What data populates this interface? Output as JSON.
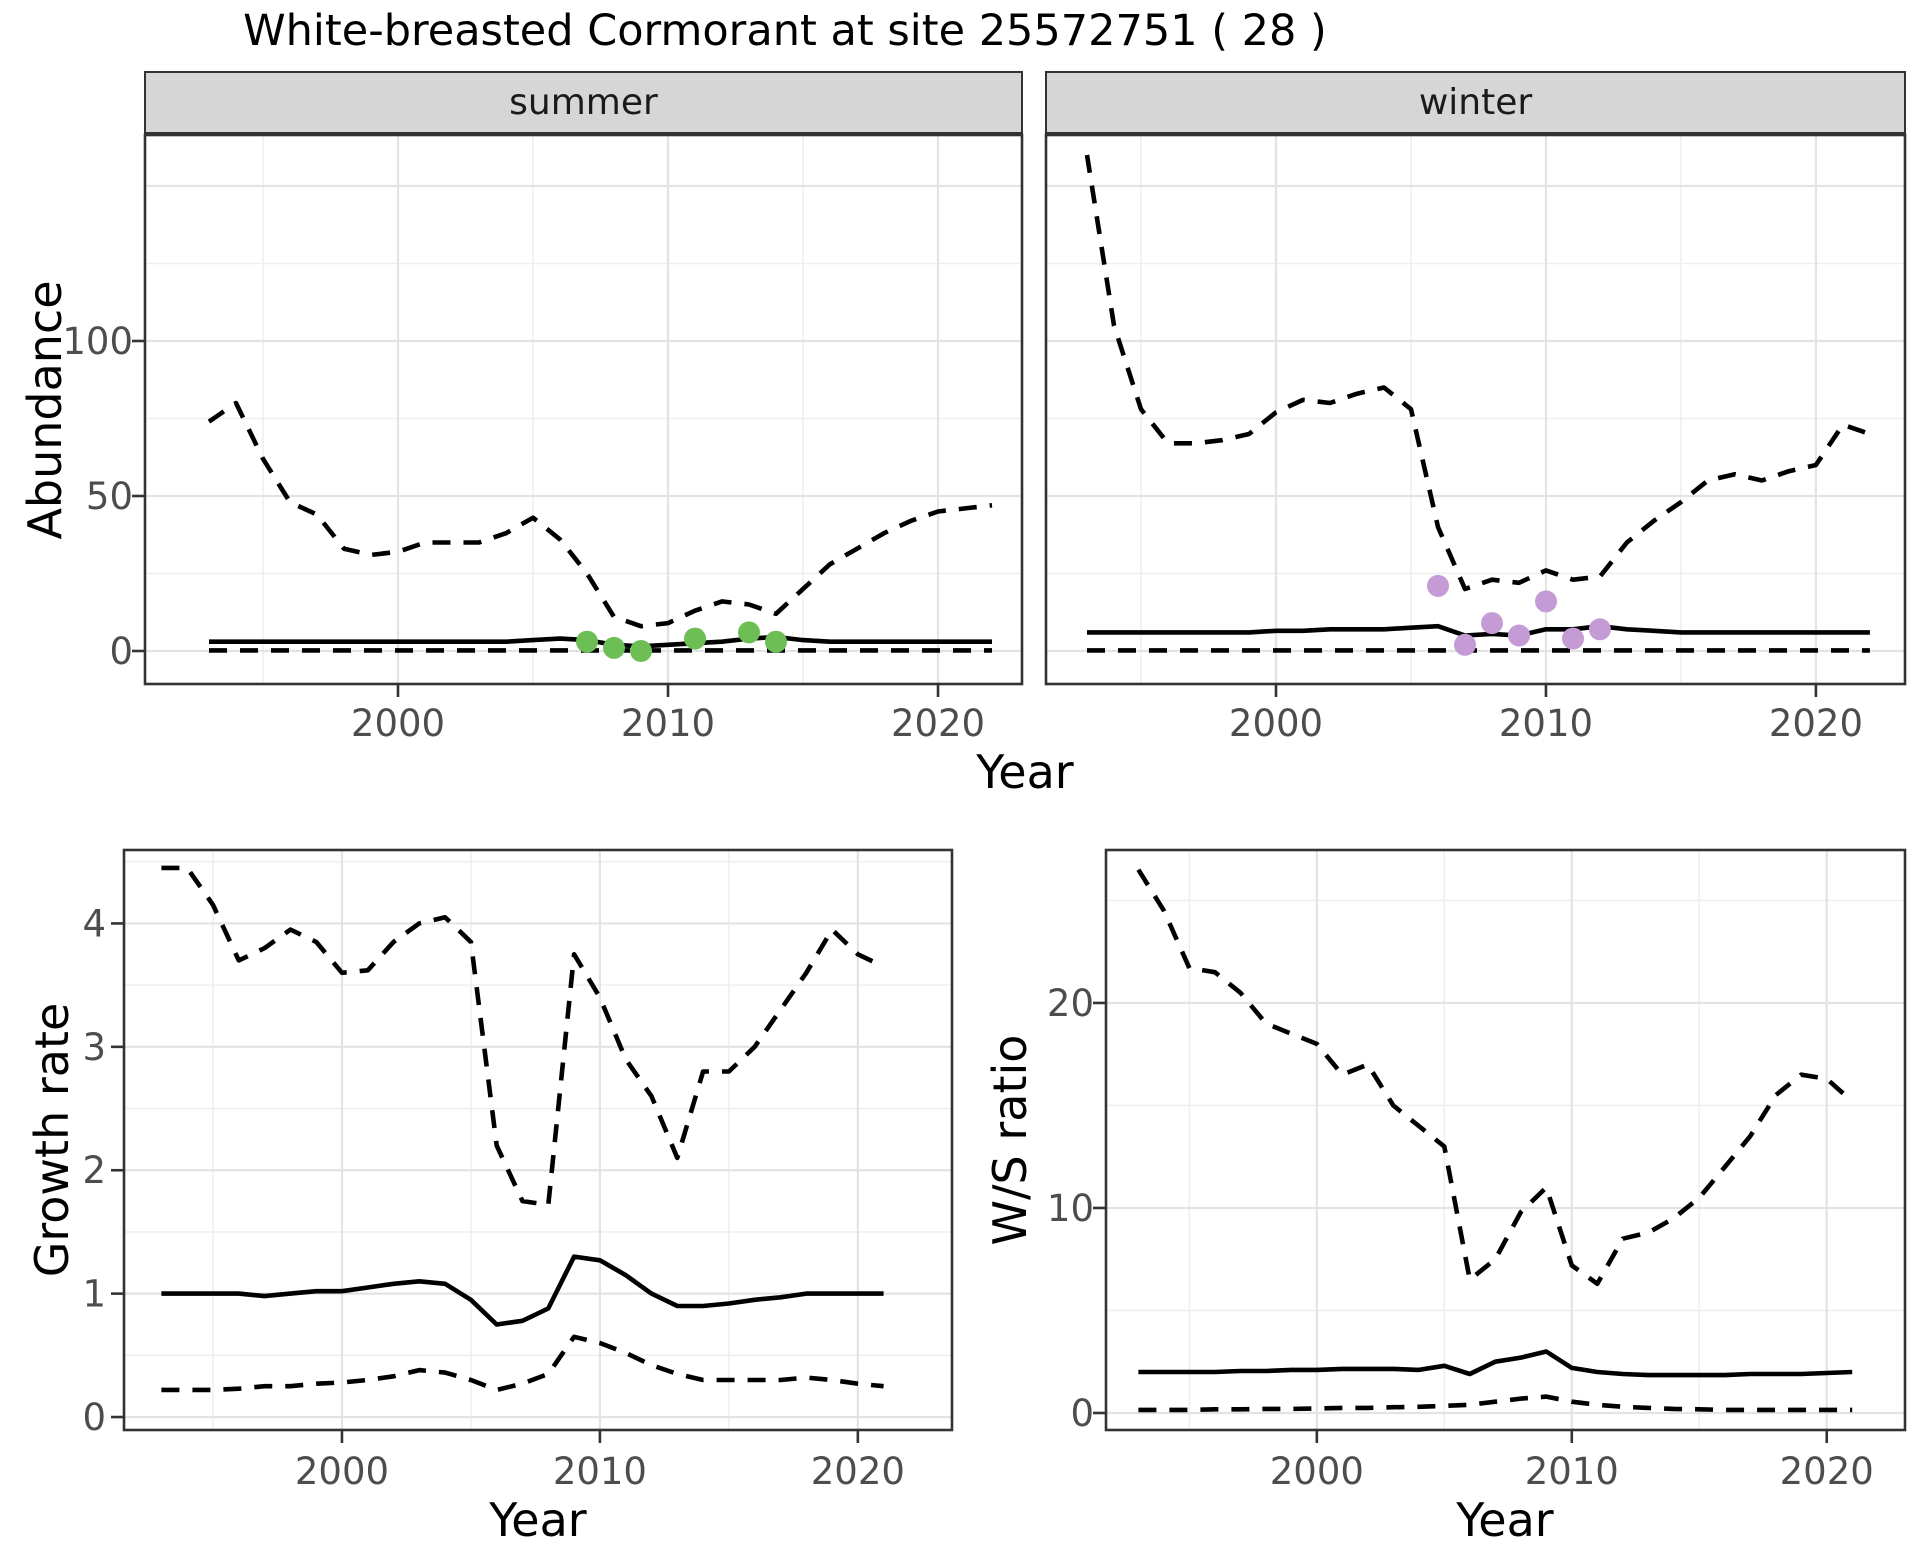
{
  "title": "White-breasted Cormorant at site 25572751 ( 28 )",
  "colors": {
    "observed_summer": "#6dbe54",
    "observed_winter": "#c49bd4",
    "line": "#000000",
    "grid_major": "#e3e3e3",
    "grid_minor": "#efefef",
    "panel_border": "#333333",
    "strip_fill": "#d6d6d6",
    "tick_text": "#4d4d4d",
    "strip_text": "#1a1a1a"
  },
  "labels": {
    "facet_summer": "summer",
    "facet_winter": "winter",
    "abundance_axis": "Abundance",
    "year_axis_top": "Year",
    "growth_axis": "Growth rate",
    "ws_axis": "W/S ratio",
    "year_axis_bottom_left": "Year",
    "year_axis_bottom_right": "Year"
  },
  "chart_data": [
    {
      "id": "summer",
      "type": "line",
      "facet_label": "summer",
      "xlabel": "Year",
      "ylabel": "Abundance",
      "legend": "none",
      "grid": true,
      "x_domain": [
        1990.63,
        2023.11
      ],
      "y_domain": [
        -10.65,
        166.45
      ],
      "x_ticks": [
        2000,
        2010,
        2020
      ],
      "x_minor": [
        1995,
        2005,
        2015
      ],
      "y_ticks": [
        0,
        50,
        100
      ],
      "y_grid": [
        0,
        50,
        100,
        150
      ],
      "y_minor": [
        25,
        75,
        125
      ],
      "x": [
        1993,
        1994,
        1995,
        1996,
        1997,
        1998,
        1999,
        2000,
        2001,
        2002,
        2003,
        2004,
        2005,
        2006,
        2007,
        2008,
        2009,
        2010,
        2011,
        2012,
        2013,
        2014,
        2015,
        2016,
        2017,
        2018,
        2019,
        2020,
        2021,
        2022
      ],
      "series": [
        {
          "name": "upper_ci",
          "label": "97.5% credible bound",
          "style": "dashed",
          "values": [
            74,
            80,
            62,
            48,
            44,
            33,
            31,
            32,
            35,
            35,
            35,
            38,
            43,
            36,
            25,
            11,
            8,
            9,
            13,
            16,
            15,
            12,
            20,
            28,
            33,
            38,
            42,
            45,
            46,
            47
          ]
        },
        {
          "name": "median",
          "label": "modelled abundance",
          "style": "solid",
          "values": [
            3,
            3,
            3,
            3,
            3,
            3,
            3,
            3,
            3,
            3,
            3,
            3,
            3.5,
            4,
            3.5,
            2,
            1.5,
            2,
            2.5,
            3,
            4,
            4.5,
            3.5,
            3,
            3,
            3,
            3,
            3,
            3,
            3
          ]
        },
        {
          "name": "lower_ci",
          "label": "2.5% credible bound",
          "style": "dashed",
          "values": [
            0.2,
            0.2,
            0.2,
            0.2,
            0.2,
            0.2,
            0.2,
            0.2,
            0.2,
            0.2,
            0.2,
            0.2,
            0.2,
            0.2,
            0.2,
            0.2,
            0.2,
            0.2,
            0.2,
            0.2,
            0.2,
            0.2,
            0.2,
            0.2,
            0.2,
            0.2,
            0.2,
            0.2,
            0.2,
            0.2
          ]
        }
      ],
      "points": {
        "label": "observed counts (summer)",
        "color": "#6dbe54",
        "years": [
          2007,
          2008,
          2009,
          2011,
          2013,
          2014
        ],
        "values": [
          3,
          1,
          0,
          4,
          6,
          3
        ]
      }
    },
    {
      "id": "winter",
      "type": "line",
      "facet_label": "winter",
      "xlabel": "Year",
      "ylabel": "",
      "legend": "none",
      "grid": true,
      "x_domain": [
        1991.48,
        2023.3
      ],
      "y_domain": [
        -10.65,
        166.45
      ],
      "x_ticks": [
        2000,
        2010,
        2020
      ],
      "x_minor": [
        1995,
        2005,
        2015
      ],
      "y_ticks": [],
      "y_grid": [
        0,
        50,
        100,
        150
      ],
      "y_minor": [
        25,
        75,
        125
      ],
      "x": [
        1993,
        1994,
        1995,
        1996,
        1997,
        1998,
        1999,
        2000,
        2001,
        2002,
        2003,
        2004,
        2005,
        2006,
        2007,
        2008,
        2009,
        2010,
        2011,
        2012,
        2013,
        2014,
        2015,
        2016,
        2017,
        2018,
        2019,
        2020,
        2021,
        2022
      ],
      "series": [
        {
          "name": "upper_ci",
          "label": "97.5% credible bound",
          "style": "dashed",
          "values": [
            160,
            105,
            78,
            67,
            67,
            68,
            70,
            77,
            81,
            80,
            83,
            85,
            78,
            40,
            20,
            23,
            22,
            26,
            23,
            24,
            35,
            42,
            48,
            55,
            57,
            55,
            58,
            60,
            73,
            70
          ]
        },
        {
          "name": "median",
          "label": "modelled abundance",
          "style": "solid",
          "values": [
            6,
            6,
            6,
            6,
            6,
            6,
            6,
            6.5,
            6.5,
            7,
            7,
            7,
            7.5,
            8,
            5,
            5.5,
            5,
            7,
            7,
            8,
            7,
            6.5,
            6,
            6,
            6,
            6,
            6,
            6,
            6,
            6
          ]
        },
        {
          "name": "lower_ci",
          "label": "2.5% credible bound",
          "style": "dashed",
          "values": [
            0.2,
            0.2,
            0.2,
            0.2,
            0.2,
            0.2,
            0.2,
            0.2,
            0.2,
            0.2,
            0.2,
            0.2,
            0.2,
            0.2,
            0.2,
            0.2,
            0.2,
            0.2,
            0.2,
            0.2,
            0.2,
            0.2,
            0.2,
            0.2,
            0.2,
            0.2,
            0.2,
            0.2,
            0.2,
            0.2
          ]
        }
      ],
      "points": {
        "label": "observed counts (winter)",
        "color": "#c49bd4",
        "years": [
          2006,
          2007,
          2008,
          2009,
          2010,
          2011,
          2012
        ],
        "values": [
          21,
          2,
          9,
          5,
          16,
          4,
          7
        ]
      }
    },
    {
      "id": "growth",
      "type": "line",
      "xlabel": "Year",
      "ylabel": "Growth rate",
      "legend": "none",
      "grid": true,
      "x_domain": [
        1991.55,
        2023.65
      ],
      "y_domain": [
        -0.105,
        4.595
      ],
      "x_ticks": [
        2000,
        2010,
        2020
      ],
      "x_minor": [
        1995,
        2005,
        2015
      ],
      "y_ticks": [
        0,
        1,
        2,
        3,
        4
      ],
      "y_grid": [
        0,
        1,
        2,
        3,
        4
      ],
      "y_minor": [
        0.5,
        1.5,
        2.5,
        3.5,
        4.5
      ],
      "x": [
        1993,
        1994,
        1995,
        1996,
        1997,
        1998,
        1999,
        2000,
        2001,
        2002,
        2003,
        2004,
        2005,
        2006,
        2007,
        2008,
        2009,
        2010,
        2011,
        2012,
        2013,
        2014,
        2015,
        2016,
        2017,
        2018,
        2019,
        2020,
        2021
      ],
      "series": [
        {
          "name": "upper_ci",
          "label": "97.5% credible bound",
          "style": "dashed",
          "values": [
            4.45,
            4.45,
            4.15,
            3.7,
            3.8,
            3.95,
            3.85,
            3.6,
            3.62,
            3.85,
            4.0,
            4.05,
            3.85,
            2.2,
            1.75,
            1.72,
            3.75,
            3.4,
            2.9,
            2.6,
            2.1,
            2.8,
            2.8,
            3.0,
            3.3,
            3.6,
            3.95,
            3.75,
            3.65
          ]
        },
        {
          "name": "median",
          "label": "median growth rate",
          "style": "solid",
          "values": [
            1.0,
            1.0,
            1.0,
            1.0,
            0.98,
            1.0,
            1.02,
            1.02,
            1.05,
            1.08,
            1.1,
            1.08,
            0.95,
            0.75,
            0.78,
            0.88,
            1.3,
            1.27,
            1.15,
            1.0,
            0.9,
            0.9,
            0.92,
            0.95,
            0.97,
            1.0,
            1.0,
            1.0,
            1.0
          ]
        },
        {
          "name": "lower_ci",
          "label": "2.5% credible bound",
          "style": "dashed",
          "values": [
            0.22,
            0.22,
            0.22,
            0.23,
            0.25,
            0.25,
            0.27,
            0.28,
            0.3,
            0.33,
            0.38,
            0.36,
            0.3,
            0.22,
            0.27,
            0.35,
            0.65,
            0.6,
            0.52,
            0.42,
            0.35,
            0.3,
            0.3,
            0.3,
            0.3,
            0.32,
            0.3,
            0.27,
            0.25
          ]
        }
      ]
    },
    {
      "id": "ws",
      "type": "line",
      "xlabel": "Year",
      "ylabel": "W/S ratio",
      "legend": "none",
      "grid": true,
      "x_domain": [
        1991.73,
        2023.07
      ],
      "y_domain": [
        -0.83,
        27.46
      ],
      "x_ticks": [
        2000,
        2010,
        2020
      ],
      "x_minor": [
        1995,
        2005,
        2015
      ],
      "y_ticks": [
        0,
        10,
        20
      ],
      "y_grid": [
        0,
        10,
        20
      ],
      "y_minor": [
        5,
        15,
        25
      ],
      "x": [
        1993,
        1994,
        1995,
        1996,
        1997,
        1998,
        1999,
        2000,
        2001,
        2002,
        2003,
        2004,
        2005,
        2006,
        2007,
        2008,
        2009,
        2010,
        2011,
        2012,
        2013,
        2014,
        2015,
        2016,
        2017,
        2018,
        2019,
        2020,
        2021
      ],
      "series": [
        {
          "name": "upper_ci",
          "label": "97.5% credible bound",
          "style": "dashed",
          "values": [
            26.5,
            24.5,
            21.7,
            21.5,
            20.5,
            19.0,
            18.5,
            18.0,
            16.5,
            17.0,
            15.0,
            14.0,
            13.0,
            6.5,
            7.5,
            9.8,
            11.0,
            7.2,
            6.3,
            8.5,
            8.8,
            9.5,
            10.5,
            12.0,
            13.5,
            15.5,
            16.5,
            16.3,
            15.2
          ]
        },
        {
          "name": "median",
          "label": "median winter/summer ratio",
          "style": "solid",
          "values": [
            2.0,
            2.0,
            2.0,
            2.0,
            2.05,
            2.05,
            2.1,
            2.1,
            2.15,
            2.15,
            2.15,
            2.1,
            2.3,
            1.9,
            2.5,
            2.7,
            3.0,
            2.2,
            2.0,
            1.9,
            1.85,
            1.85,
            1.85,
            1.85,
            1.9,
            1.9,
            1.9,
            1.95,
            2.0
          ]
        },
        {
          "name": "lower_ci",
          "label": "2.5% credible bound",
          "style": "dashed",
          "values": [
            0.15,
            0.15,
            0.15,
            0.18,
            0.18,
            0.2,
            0.2,
            0.22,
            0.25,
            0.25,
            0.28,
            0.3,
            0.35,
            0.4,
            0.55,
            0.7,
            0.8,
            0.55,
            0.4,
            0.3,
            0.25,
            0.2,
            0.18,
            0.15,
            0.15,
            0.15,
            0.15,
            0.15,
            0.15
          ]
        }
      ]
    }
  ]
}
